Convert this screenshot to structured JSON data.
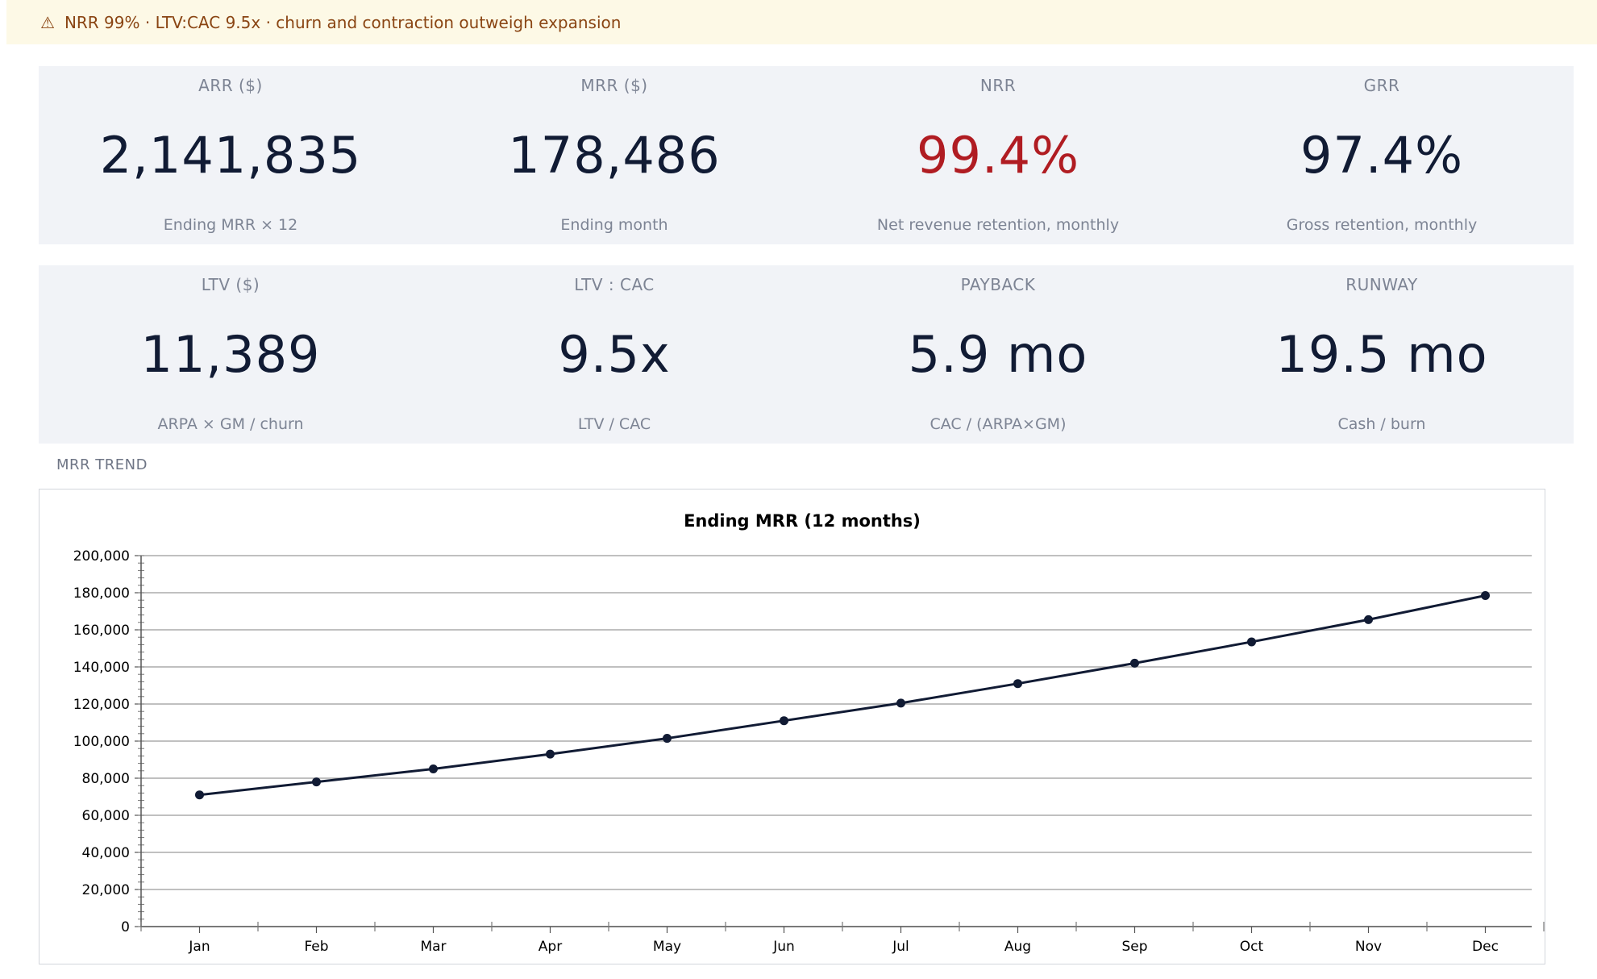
{
  "alert": {
    "icon": "warning-icon",
    "text": "NRR 99% · LTV:CAC 9.5x · churn and contraction outweigh expansion"
  },
  "kpis_row1": [
    {
      "label": "ARR ($)",
      "value": "2,141,835",
      "sub": "Ending MRR × 12"
    },
    {
      "label": "MRR ($)",
      "value": "178,486",
      "sub": "Ending month"
    },
    {
      "label": "NRR",
      "value": "99.4%",
      "sub": "Net revenue retention, monthly"
    },
    {
      "label": "GRR",
      "value": "97.4%",
      "sub": "Gross retention, monthly"
    }
  ],
  "kpis_row2": [
    {
      "label": "LTV ($)",
      "value": "11,389",
      "sub": "ARPA × GM / churn"
    },
    {
      "label": "LTV : CAC",
      "value": "9.5x",
      "sub": "LTV / CAC"
    },
    {
      "label": "PAYBACK",
      "value": "5.9 mo",
      "sub": "CAC / (ARPA×GM)"
    },
    {
      "label": "RUNWAY",
      "value": "19.5 mo",
      "sub": "Cash / burn"
    }
  ],
  "colors": {
    "alert_bg": "#fdf9e6",
    "alert_text": "#8a4513",
    "bad_value": "#b01c22",
    "line": "#111b34"
  },
  "section": {
    "title": "MRR TREND"
  },
  "chart_data": {
    "type": "line",
    "title": "Ending MRR (12 months)",
    "xlabel": "",
    "ylabel": "",
    "categories": [
      "Jan",
      "Feb",
      "Mar",
      "Apr",
      "May",
      "Jun",
      "Jul",
      "Aug",
      "Sep",
      "Oct",
      "Nov",
      "Dec"
    ],
    "series": [
      {
        "values": [
          71000,
          78000,
          85000,
          93000,
          101500,
          111000,
          120500,
          131000,
          142000,
          153500,
          165500,
          178486
        ]
      }
    ],
    "ylim": [
      0,
      200000
    ],
    "yticks": [
      0,
      20000,
      40000,
      60000,
      80000,
      100000,
      120000,
      140000,
      160000,
      180000,
      200000
    ],
    "ytick_labels": [
      "0",
      "20,000",
      "40,000",
      "60,000",
      "80,000",
      "100,000",
      "120,000",
      "140,000",
      "160,000",
      "180,000",
      "200,000"
    ],
    "grid": true,
    "legend": "none"
  }
}
